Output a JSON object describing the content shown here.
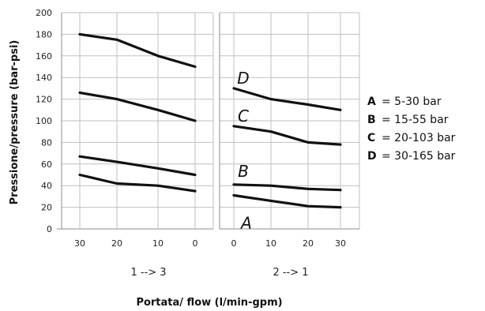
{
  "chart_data": {
    "type": "line",
    "ylabel": "Pressione/pressure  (bar-psi)",
    "xlabel": "Portata/ flow (l/min-gpm)",
    "ylim": [
      0,
      200
    ],
    "yticks": [
      "0",
      "20",
      "40",
      "60",
      "80",
      "100",
      "120",
      "140",
      "160",
      "180",
      "200"
    ],
    "grid": true,
    "panels": [
      {
        "group_label": "1 --> 3",
        "x": [
          "30",
          "20",
          "10",
          "0"
        ],
        "series": [
          {
            "values": [
              180,
              175,
              160,
              150
            ]
          },
          {
            "values": [
              126,
              120,
              110,
              100
            ]
          },
          {
            "values": [
              67,
              62,
              56,
              50
            ]
          },
          {
            "values": [
              50,
              42,
              40,
              35
            ]
          }
        ]
      },
      {
        "group_label": "2 --> 1",
        "x": [
          "0",
          "10",
          "20",
          "30"
        ],
        "series": [
          {
            "name": "D",
            "values": [
              130,
              120,
              115,
              110
            ]
          },
          {
            "name": "C",
            "values": [
              95,
              90,
              80,
              78
            ]
          },
          {
            "name": "B",
            "values": [
              41,
              40,
              37,
              36
            ]
          },
          {
            "name": "A",
            "values": [
              31,
              26,
              21,
              20
            ]
          }
        ]
      }
    ],
    "legend": {
      "placement": "right",
      "entries": [
        {
          "letter": "A",
          "text": "= 5-30 bar"
        },
        {
          "letter": "B",
          "text": "= 15-55 bar"
        },
        {
          "letter": "C",
          "text": "= 20-103 bar"
        },
        {
          "letter": "D",
          "text": "= 30-165 bar"
        }
      ]
    }
  }
}
